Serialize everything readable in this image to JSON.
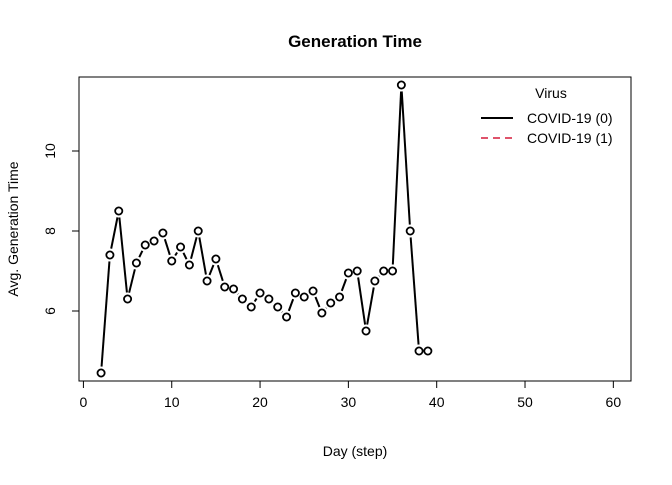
{
  "chart_data": {
    "type": "line",
    "title": "Generation Time",
    "xlabel": "Day (step)",
    "ylabel": "Avg. Generation Time",
    "xlim": [
      -0.5,
      62
    ],
    "ylim": [
      4.25,
      11.85
    ],
    "x_ticks": [
      0,
      10,
      20,
      30,
      40,
      50,
      60
    ],
    "y_ticks": [
      6,
      8,
      10
    ],
    "grid": false,
    "legend": {
      "title": "Virus",
      "placement": "top-right",
      "entries": [
        {
          "label": "COVID-19 (0)",
          "color": "#000000",
          "dash": "solid"
        },
        {
          "label": "COVID-19 (1)",
          "color": "#DF536B",
          "dash": "dashed"
        }
      ]
    },
    "series": [
      {
        "name": "COVID-19 (0)",
        "color": "#000000",
        "marker": "open-circle",
        "x": [
          2,
          3,
          4,
          5,
          6,
          7,
          8,
          9,
          10,
          11,
          12,
          13,
          14,
          15,
          16,
          17,
          18,
          19,
          20,
          21,
          22,
          23,
          24,
          25,
          26,
          27,
          28,
          29,
          30,
          31,
          32,
          33,
          34,
          35,
          36,
          37,
          38,
          39
        ],
        "y": [
          4.45,
          7.4,
          8.5,
          6.3,
          7.2,
          7.65,
          7.75,
          7.95,
          7.25,
          7.6,
          7.15,
          8.0,
          6.75,
          7.3,
          6.6,
          6.55,
          6.3,
          6.1,
          6.45,
          6.3,
          6.1,
          5.85,
          6.45,
          6.35,
          6.5,
          5.95,
          6.2,
          6.35,
          6.95,
          7.0,
          5.5,
          6.75,
          7.0,
          7.0,
          11.65,
          8.0,
          5.0,
          5.0
        ]
      }
    ]
  }
}
